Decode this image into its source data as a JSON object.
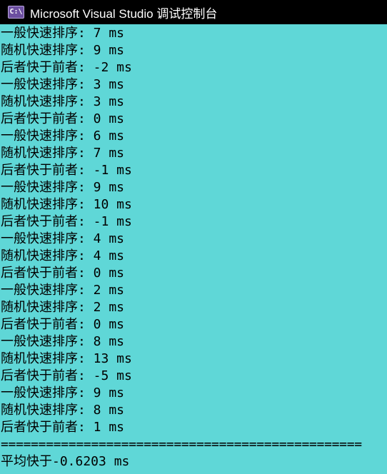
{
  "window": {
    "icon_label": "C:\\",
    "title": "Microsoft Visual Studio 调试控制台"
  },
  "console": {
    "lines": [
      "一般快速排序: 7 ms",
      "随机快速排序: 9 ms",
      "后者快于前者: -2 ms",
      "一般快速排序: 3 ms",
      "随机快速排序: 3 ms",
      "后者快于前者: 0 ms",
      "一般快速排序: 6 ms",
      "随机快速排序: 7 ms",
      "后者快于前者: -1 ms",
      "一般快速排序: 9 ms",
      "随机快速排序: 10 ms",
      "后者快于前者: -1 ms",
      "一般快速排序: 4 ms",
      "随机快速排序: 4 ms",
      "后者快于前者: 0 ms",
      "一般快速排序: 2 ms",
      "随机快速排序: 2 ms",
      "后者快于前者: 0 ms",
      "一般快速排序: 8 ms",
      "随机快速排序: 13 ms",
      "后者快于前者: -5 ms",
      "一般快速排序: 9 ms",
      "随机快速排序: 8 ms",
      "后者快于前者: 1 ms"
    ],
    "separator": "================================================",
    "summary": "平均快于-0.6203 ms"
  },
  "colors": {
    "background": "#5fd7d7",
    "text": "#000000",
    "titlebar": "#000000"
  }
}
